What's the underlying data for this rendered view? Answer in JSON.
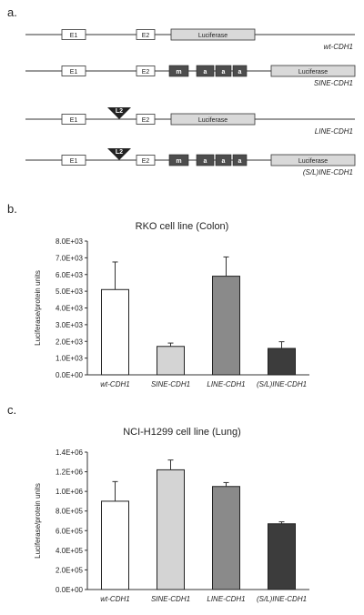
{
  "panels": {
    "a": "a.",
    "b": "b.",
    "c": "c."
  },
  "constructs": [
    {
      "name": "wt-CDH1",
      "e1": "E1",
      "e2": "E2",
      "reporter": "Luciferase",
      "insert": "",
      "repeats": []
    },
    {
      "name": "SINE-CDH1",
      "e1": "E1",
      "e2": "E2",
      "reporter": "Luciferase",
      "insert": "",
      "repeats": [
        "m",
        "a",
        "a",
        "a"
      ]
    },
    {
      "name": "LINE-CDH1",
      "e1": "E1",
      "e2": "E2",
      "reporter": "Luciferase",
      "insert": "L2",
      "repeats": []
    },
    {
      "name": "(S/L)INE-CDH1",
      "e1": "E1",
      "e2": "E2",
      "reporter": "Luciferase",
      "insert": "L2",
      "repeats": [
        "m",
        "a",
        "a",
        "a"
      ]
    }
  ],
  "colors": {
    "box_white": "#ffffff",
    "reporter": "#d9d9d9",
    "repeat": "#4d4d4d",
    "insert": "#222222",
    "bar_colors": [
      "#ffffff",
      "#d4d4d4",
      "#8a8a8a",
      "#3c3c3c"
    ]
  },
  "chart_data": [
    {
      "type": "bar",
      "title": "RKO  cell line (Colon)",
      "xlabel": "",
      "ylabel": "Luciferase/protein units",
      "categories": [
        "wt-CDH1",
        "SINE-CDH1",
        "LINE-CDH1",
        "(S/L)INE-CDH1"
      ],
      "values": [
        5100,
        1700,
        5900,
        1580
      ],
      "errors": [
        1650,
        200,
        1150,
        400
      ],
      "ylim": [
        0,
        8000
      ],
      "yticks": [
        0,
        1000,
        2000,
        3000,
        4000,
        5000,
        6000,
        7000,
        8000
      ],
      "ytick_labels": [
        "0.0E+00",
        "1.0E+03",
        "2.0E+03",
        "3.0E+03",
        "4.0E+03",
        "5.0E+03",
        "6.0E+03",
        "7.0E+03",
        "8.0E+03"
      ],
      "grid": false,
      "legend": "none"
    },
    {
      "type": "bar",
      "title": "NCI-H1299 cell line (Lung)",
      "xlabel": "",
      "ylabel": "Luciferase/protein units",
      "categories": [
        "wt-CDH1",
        "SINE-CDH1",
        "LINE-CDH1",
        "(S/L)INE-CDH1"
      ],
      "values": [
        900000,
        1220000,
        1050000,
        670000
      ],
      "errors": [
        200000,
        100000,
        40000,
        20000
      ],
      "ylim": [
        0,
        1400000
      ],
      "yticks": [
        0,
        200000,
        400000,
        600000,
        800000,
        1000000,
        1200000,
        1400000
      ],
      "ytick_labels": [
        "0.0E+00",
        "2.0E+05",
        "4.0E+05",
        "6.0E+05",
        "8.0E+05",
        "1.0E+06",
        "1.2E+06",
        "1.4E+06"
      ],
      "grid": false,
      "legend": "none"
    }
  ]
}
